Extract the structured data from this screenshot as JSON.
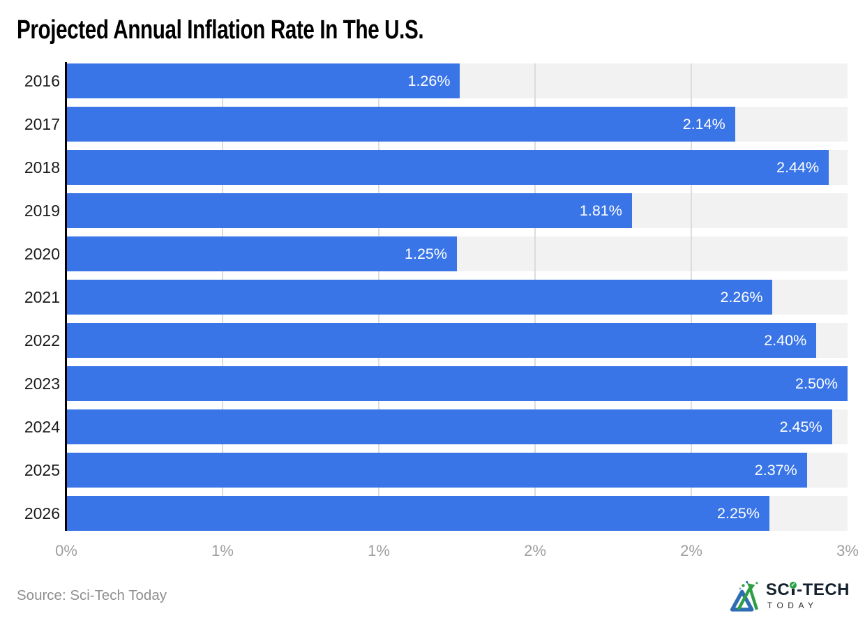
{
  "title": "Projected Annual Inflation Rate In The U.S.",
  "source": "Source: Sci-Tech Today",
  "logo": {
    "text_sc": "SC",
    "text_tech": "-TECH",
    "check": "✓",
    "tagline": "TODAY"
  },
  "colors": {
    "bar": "#3A75E8",
    "track": "#F2F2F2",
    "gridline": "#DCDCDC",
    "axis": "#000000",
    "value_label": "#FFFFFF",
    "year_label": "#1B1B1B",
    "tick_label": "#9E9E9E",
    "source_text": "#8F8F8F",
    "logo_blue": "#2E6DB4",
    "logo_green": "#2E9E46"
  },
  "chart_data": {
    "type": "bar",
    "orientation": "horizontal",
    "title": "Projected Annual Inflation Rate In The U.S.",
    "categories": [
      "2016",
      "2017",
      "2018",
      "2019",
      "2020",
      "2021",
      "2022",
      "2023",
      "2024",
      "2025",
      "2026"
    ],
    "values": [
      1.26,
      2.14,
      2.44,
      1.81,
      1.25,
      2.26,
      2.4,
      2.5,
      2.45,
      2.37,
      2.25
    ],
    "labels": [
      "1.26%",
      "2.14%",
      "2.44%",
      "1.81%",
      "1.25%",
      "2.26%",
      "2.40%",
      "2.50%",
      "2.45%",
      "2.37%",
      "2.25%"
    ],
    "xlabel": "",
    "ylabel": "",
    "xlim": [
      0,
      2.5
    ],
    "x_ticks": [
      0,
      0.5,
      1.0,
      1.5,
      2.0,
      2.5
    ],
    "x_tick_labels": [
      "0%",
      "1%",
      "1%",
      "2%",
      "2%",
      "3%"
    ],
    "grid": true,
    "legend": false
  }
}
